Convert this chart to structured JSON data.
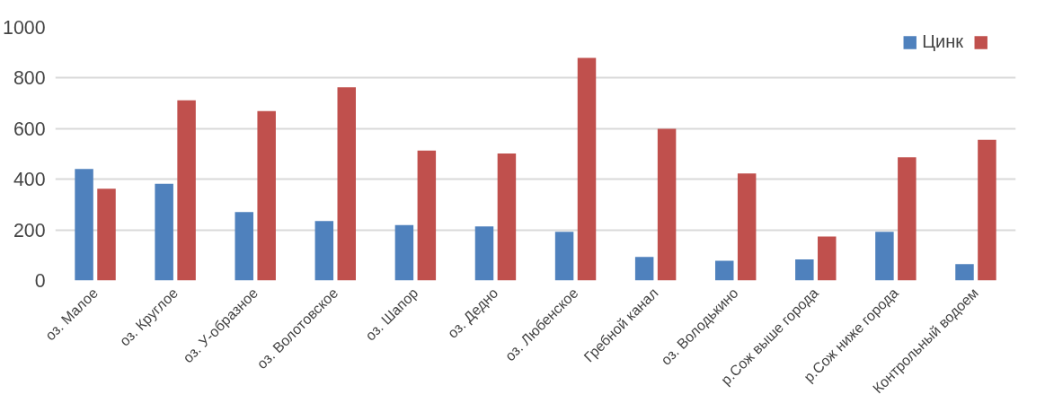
{
  "chart_data": {
    "type": "bar",
    "categories": [
      "оз. Малое",
      "оз. Круглое",
      "оз. У-образное",
      "оз. Волотовское",
      "оз. Шапор",
      "оз. Дедно",
      "оз. Любенское",
      "Гребной канал",
      "оз. Володькино",
      "р.Сож выше города",
      "р.Сож ниже города",
      "Контрольный водоем"
    ],
    "series": [
      {
        "name": "Цинк",
        "color": "#4f81bd",
        "values": [
          441,
          382,
          270,
          235,
          219,
          214,
          192,
          93,
          78,
          83,
          192,
          65
        ]
      },
      {
        "color": "#c0504d",
        "values": [
          363,
          712,
          669,
          763,
          513,
          502,
          879,
          599,
          423,
          174,
          487,
          556
        ]
      }
    ],
    "ylim": [
      0,
      1000
    ],
    "yticks": [
      0,
      200,
      400,
      600,
      800,
      1000
    ],
    "grid": "y",
    "legend": "top right"
  }
}
